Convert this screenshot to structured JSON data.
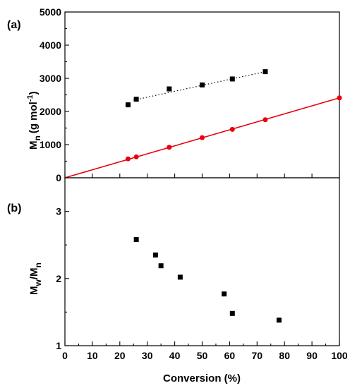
{
  "chart_data": [
    {
      "panel_label": "(a)",
      "type": "scatter",
      "ylabel_main": "M",
      "ylabel_sub": "n",
      "ylabel_units": "(g mol",
      "ylabel_sup": "-1",
      "ylabel_close": ")",
      "xlim": [
        0,
        100
      ],
      "ylim": [
        0,
        5000
      ],
      "yticks": [
        "0",
        "1000",
        "2000",
        "3000",
        "4000",
        "5000"
      ],
      "series": [
        {
          "marker": "square",
          "color": "#000000",
          "points": [
            [
              23,
              2200
            ],
            [
              26,
              2370
            ],
            [
              38,
              2680
            ],
            [
              50,
              2800
            ],
            [
              61,
              2980
            ],
            [
              73,
              3200
            ]
          ],
          "fit": {
            "style": "dotted",
            "x": [
              25,
              73
            ],
            "y": [
              2340,
              3200
            ]
          }
        },
        {
          "marker": "circle",
          "color": "#e8000b",
          "points": [
            [
              23,
              570
            ],
            [
              26,
              630
            ],
            [
              38,
              920
            ],
            [
              50,
              1210
            ],
            [
              61,
              1460
            ],
            [
              73,
              1750
            ],
            [
              100,
              2410
            ]
          ],
          "fit": {
            "style": "solid",
            "x": [
              0,
              100
            ],
            "y": [
              0,
              2410
            ]
          }
        }
      ]
    },
    {
      "panel_label": "(b)",
      "type": "scatter",
      "ylabel_a": "M",
      "ylabel_a_sub": "w",
      "ylabel_sep": "/M",
      "ylabel_b_sub": "n",
      "xlabel": "Conversion (%)",
      "xlim": [
        0,
        100
      ],
      "ylim": [
        1,
        3.5
      ],
      "yticks": [
        "1",
        "2",
        "3"
      ],
      "xticks": [
        "0",
        "10",
        "20",
        "30",
        "40",
        "50",
        "60",
        "70",
        "80",
        "90",
        "100"
      ],
      "series": [
        {
          "marker": "square",
          "color": "#000000",
          "points": [
            [
              26,
              2.58
            ],
            [
              33,
              2.35
            ],
            [
              35,
              2.19
            ],
            [
              42,
              2.02
            ],
            [
              58,
              1.77
            ],
            [
              61,
              1.48
            ],
            [
              78,
              1.38
            ]
          ]
        }
      ]
    }
  ]
}
